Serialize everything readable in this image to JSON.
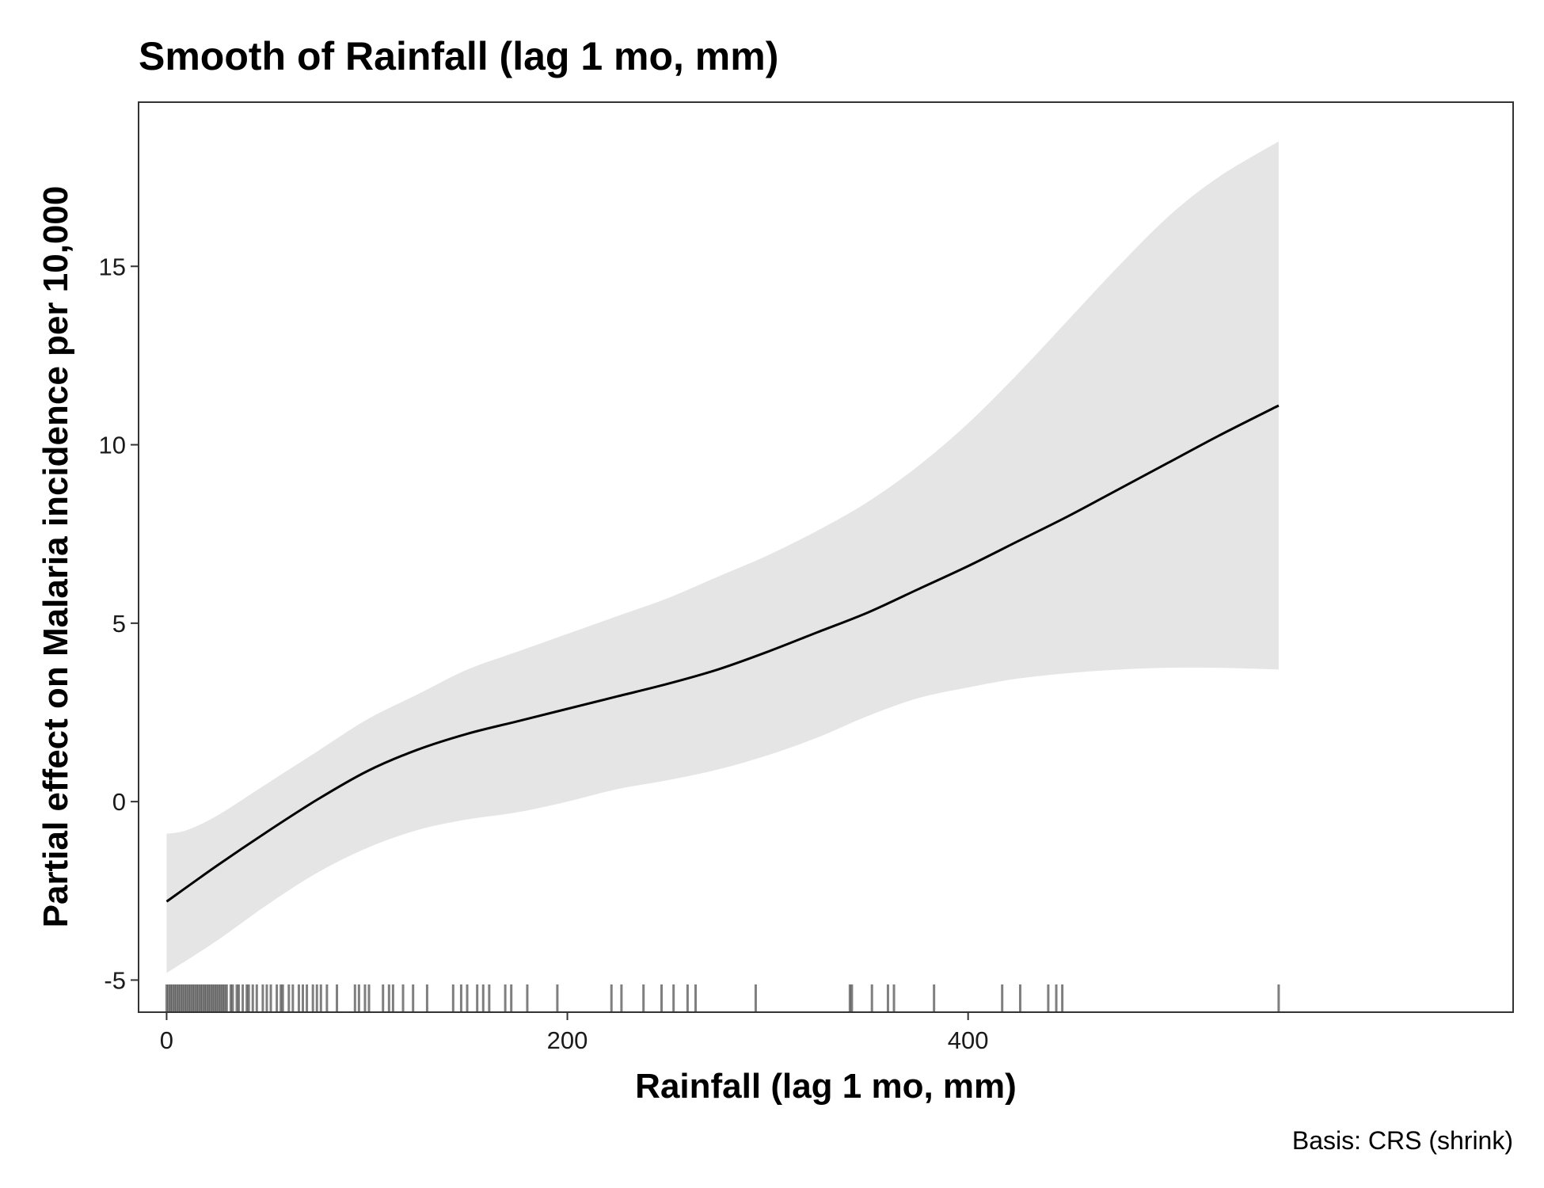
{
  "chart_data": {
    "type": "line",
    "title": "Smooth of Rainfall (lag 1 mo, mm)",
    "xlabel": "Rainfall (lag 1 mo, mm)",
    "ylabel": "Partial effect on Malaria incidence per 10,000",
    "caption": "Basis: CRS (shrink)",
    "xlim": [
      -14,
      672
    ],
    "ylim": [
      -5.9,
      19.6
    ],
    "x_ticks": [
      0,
      200,
      400
    ],
    "x_tick_labels": [
      "0",
      "200",
      "400"
    ],
    "y_ticks": [
      -5,
      0,
      5,
      10,
      15
    ],
    "y_tick_labels": [
      "-5",
      "0",
      "5",
      "10",
      "15"
    ],
    "grid": false,
    "colors": {
      "line": "#000000",
      "band": "#e5e5e5",
      "rug": "#000000",
      "panel_border": "#333333"
    },
    "series": [
      {
        "role": "fit",
        "x": [
          0,
          25,
          50,
          75,
          100,
          125,
          150,
          175,
          200,
          225,
          250,
          275,
          300,
          325,
          350,
          375,
          400,
          425,
          450,
          475,
          500,
          525,
          555
        ],
        "y": [
          -2.8,
          -1.8,
          -0.85,
          0.05,
          0.85,
          1.45,
          1.9,
          2.25,
          2.6,
          2.95,
          3.3,
          3.7,
          4.2,
          4.75,
          5.3,
          5.95,
          6.6,
          7.3,
          8.0,
          8.75,
          9.5,
          10.25,
          11.1
        ]
      },
      {
        "role": "ci_upper",
        "x": [
          0,
          10,
          25,
          50,
          75,
          100,
          125,
          150,
          175,
          200,
          225,
          250,
          275,
          300,
          325,
          350,
          375,
          400,
          425,
          450,
          475,
          500,
          525,
          555
        ],
        "y": [
          -0.9,
          -0.8,
          -0.4,
          0.5,
          1.4,
          2.3,
          3.0,
          3.7,
          4.2,
          4.7,
          5.2,
          5.7,
          6.3,
          6.9,
          7.6,
          8.4,
          9.4,
          10.6,
          12.0,
          13.5,
          15.0,
          16.4,
          17.5,
          18.5
        ]
      },
      {
        "role": "ci_lower",
        "x": [
          0,
          25,
          50,
          75,
          100,
          125,
          150,
          175,
          200,
          225,
          250,
          275,
          300,
          325,
          350,
          375,
          400,
          425,
          450,
          475,
          500,
          525,
          555
        ],
        "y": [
          -4.8,
          -3.9,
          -2.9,
          -2.0,
          -1.3,
          -0.8,
          -0.5,
          -0.3,
          0.0,
          0.35,
          0.6,
          0.9,
          1.3,
          1.8,
          2.4,
          2.9,
          3.2,
          3.45,
          3.6,
          3.7,
          3.75,
          3.75,
          3.7
        ]
      }
    ],
    "rug": {
      "x": [
        0,
        1,
        2,
        3,
        4,
        5,
        6,
        7,
        8,
        9,
        10,
        11,
        12,
        13,
        14,
        15,
        16,
        17,
        18,
        19,
        20,
        21,
        22,
        23,
        24,
        25,
        26,
        27,
        28,
        29,
        30,
        32,
        33,
        35,
        36,
        38,
        40,
        41,
        43,
        45,
        48,
        50,
        52,
        55,
        57,
        58,
        61,
        63,
        66,
        68,
        70,
        73,
        75,
        77,
        80,
        85,
        94,
        96,
        99,
        101,
        108,
        111,
        113,
        118,
        123,
        130,
        143,
        147,
        150,
        155,
        158,
        161,
        169,
        172,
        180,
        195,
        222,
        227,
        238,
        247,
        253,
        260,
        264,
        294,
        341,
        342,
        352,
        360,
        363,
        383,
        417,
        426,
        440,
        444,
        447,
        555
      ]
    }
  }
}
